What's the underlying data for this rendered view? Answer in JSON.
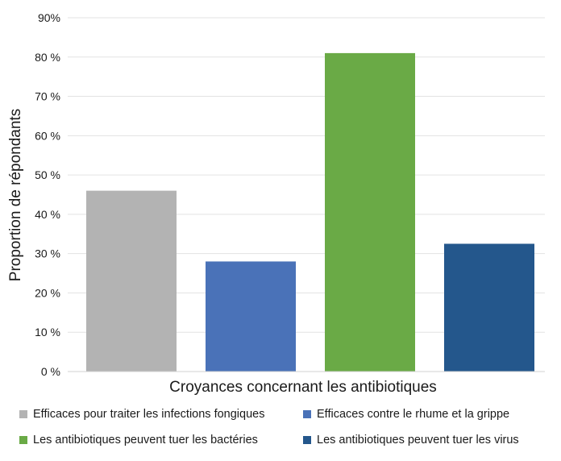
{
  "chart_data": {
    "type": "bar",
    "title": "",
    "xlabel": "Croyances concernant les antibiotiques",
    "ylabel": "Proportion de répondants",
    "ylim": [
      0,
      90
    ],
    "yticks": [
      0,
      10,
      20,
      30,
      40,
      50,
      60,
      70,
      80,
      90
    ],
    "ytick_labels": [
      "0 %",
      "10 %",
      "20 %",
      "30 %",
      "40 %",
      "50 %",
      "60 %",
      "70 %",
      "80 %",
      "90%"
    ],
    "grid": true,
    "legend_position": "bottom",
    "categories": [
      "Efficaces pour traiter les infections fongiques",
      "Efficaces contre le rhume et la grippe",
      "Les antibiotiques peuvent tuer les bactéries",
      "Les antibiotiques peuvent tuer les virus"
    ],
    "values": [
      46,
      28,
      81,
      32.5
    ],
    "colors": [
      "#b3b3b3",
      "#4a72b8",
      "#6aaa46",
      "#24578c"
    ]
  }
}
